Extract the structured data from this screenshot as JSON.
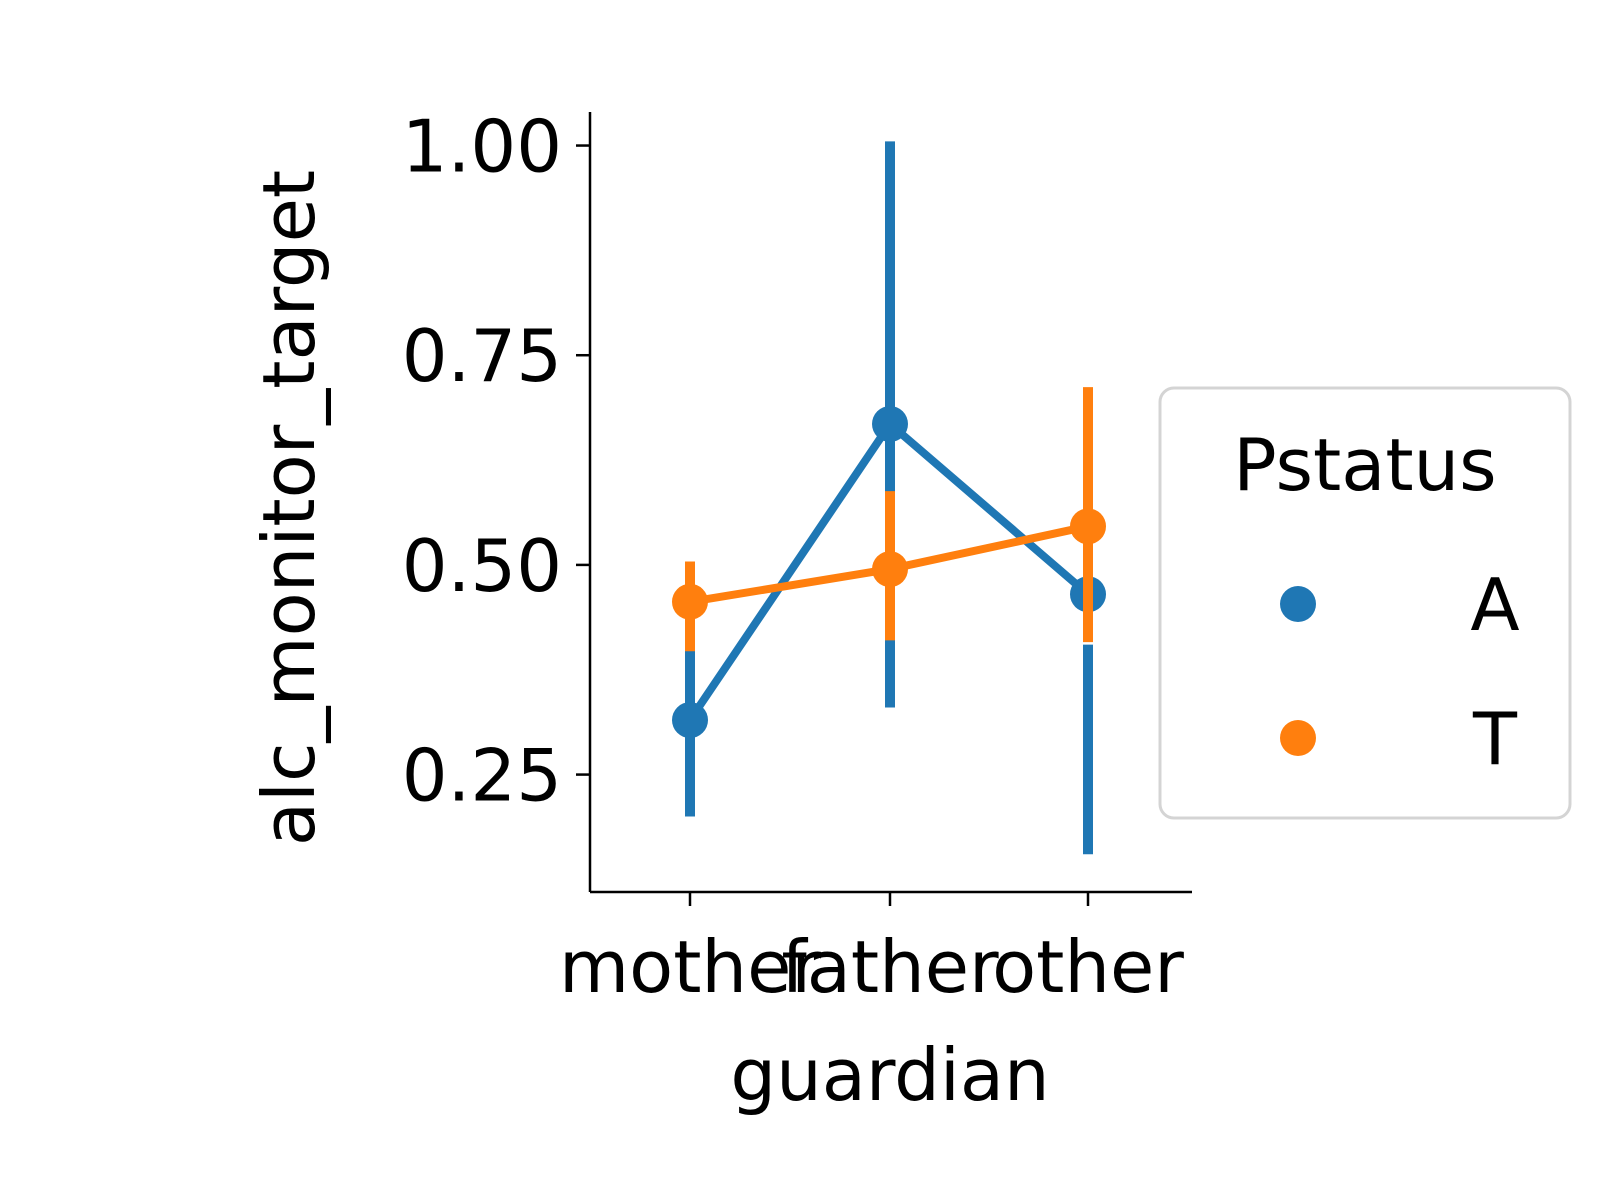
{
  "chart_data": {
    "type": "line",
    "subtype": "pointplot-with-error-bars",
    "xlabel": "guardian",
    "ylabel": "alc_monitor_target",
    "categories": [
      "mother",
      "father",
      "other"
    ],
    "ylim": [
      0.11,
      1.04
    ],
    "yticks": [
      0.25,
      0.5,
      0.75,
      1.0
    ],
    "ytick_labels": [
      "0.25",
      "0.50",
      "0.75",
      "1.00"
    ],
    "grid": false,
    "series": [
      {
        "name": "A",
        "color": "#1f77b4",
        "values": [
          0.315,
          0.668,
          0.465
        ],
        "ci_low": [
          0.2,
          0.33,
          0.155
        ],
        "ci_high": [
          0.4,
          1.005,
          0.405
        ]
      },
      {
        "name": "T",
        "color": "#ff7f0e",
        "values": [
          0.456,
          0.495,
          0.546
        ],
        "ci_low": [
          0.397,
          0.41,
          0.408
        ],
        "ci_high": [
          0.504,
          0.588,
          0.712
        ]
      }
    ],
    "legend": {
      "title": "Pstatus",
      "placement": "center-right, outside plot"
    }
  }
}
